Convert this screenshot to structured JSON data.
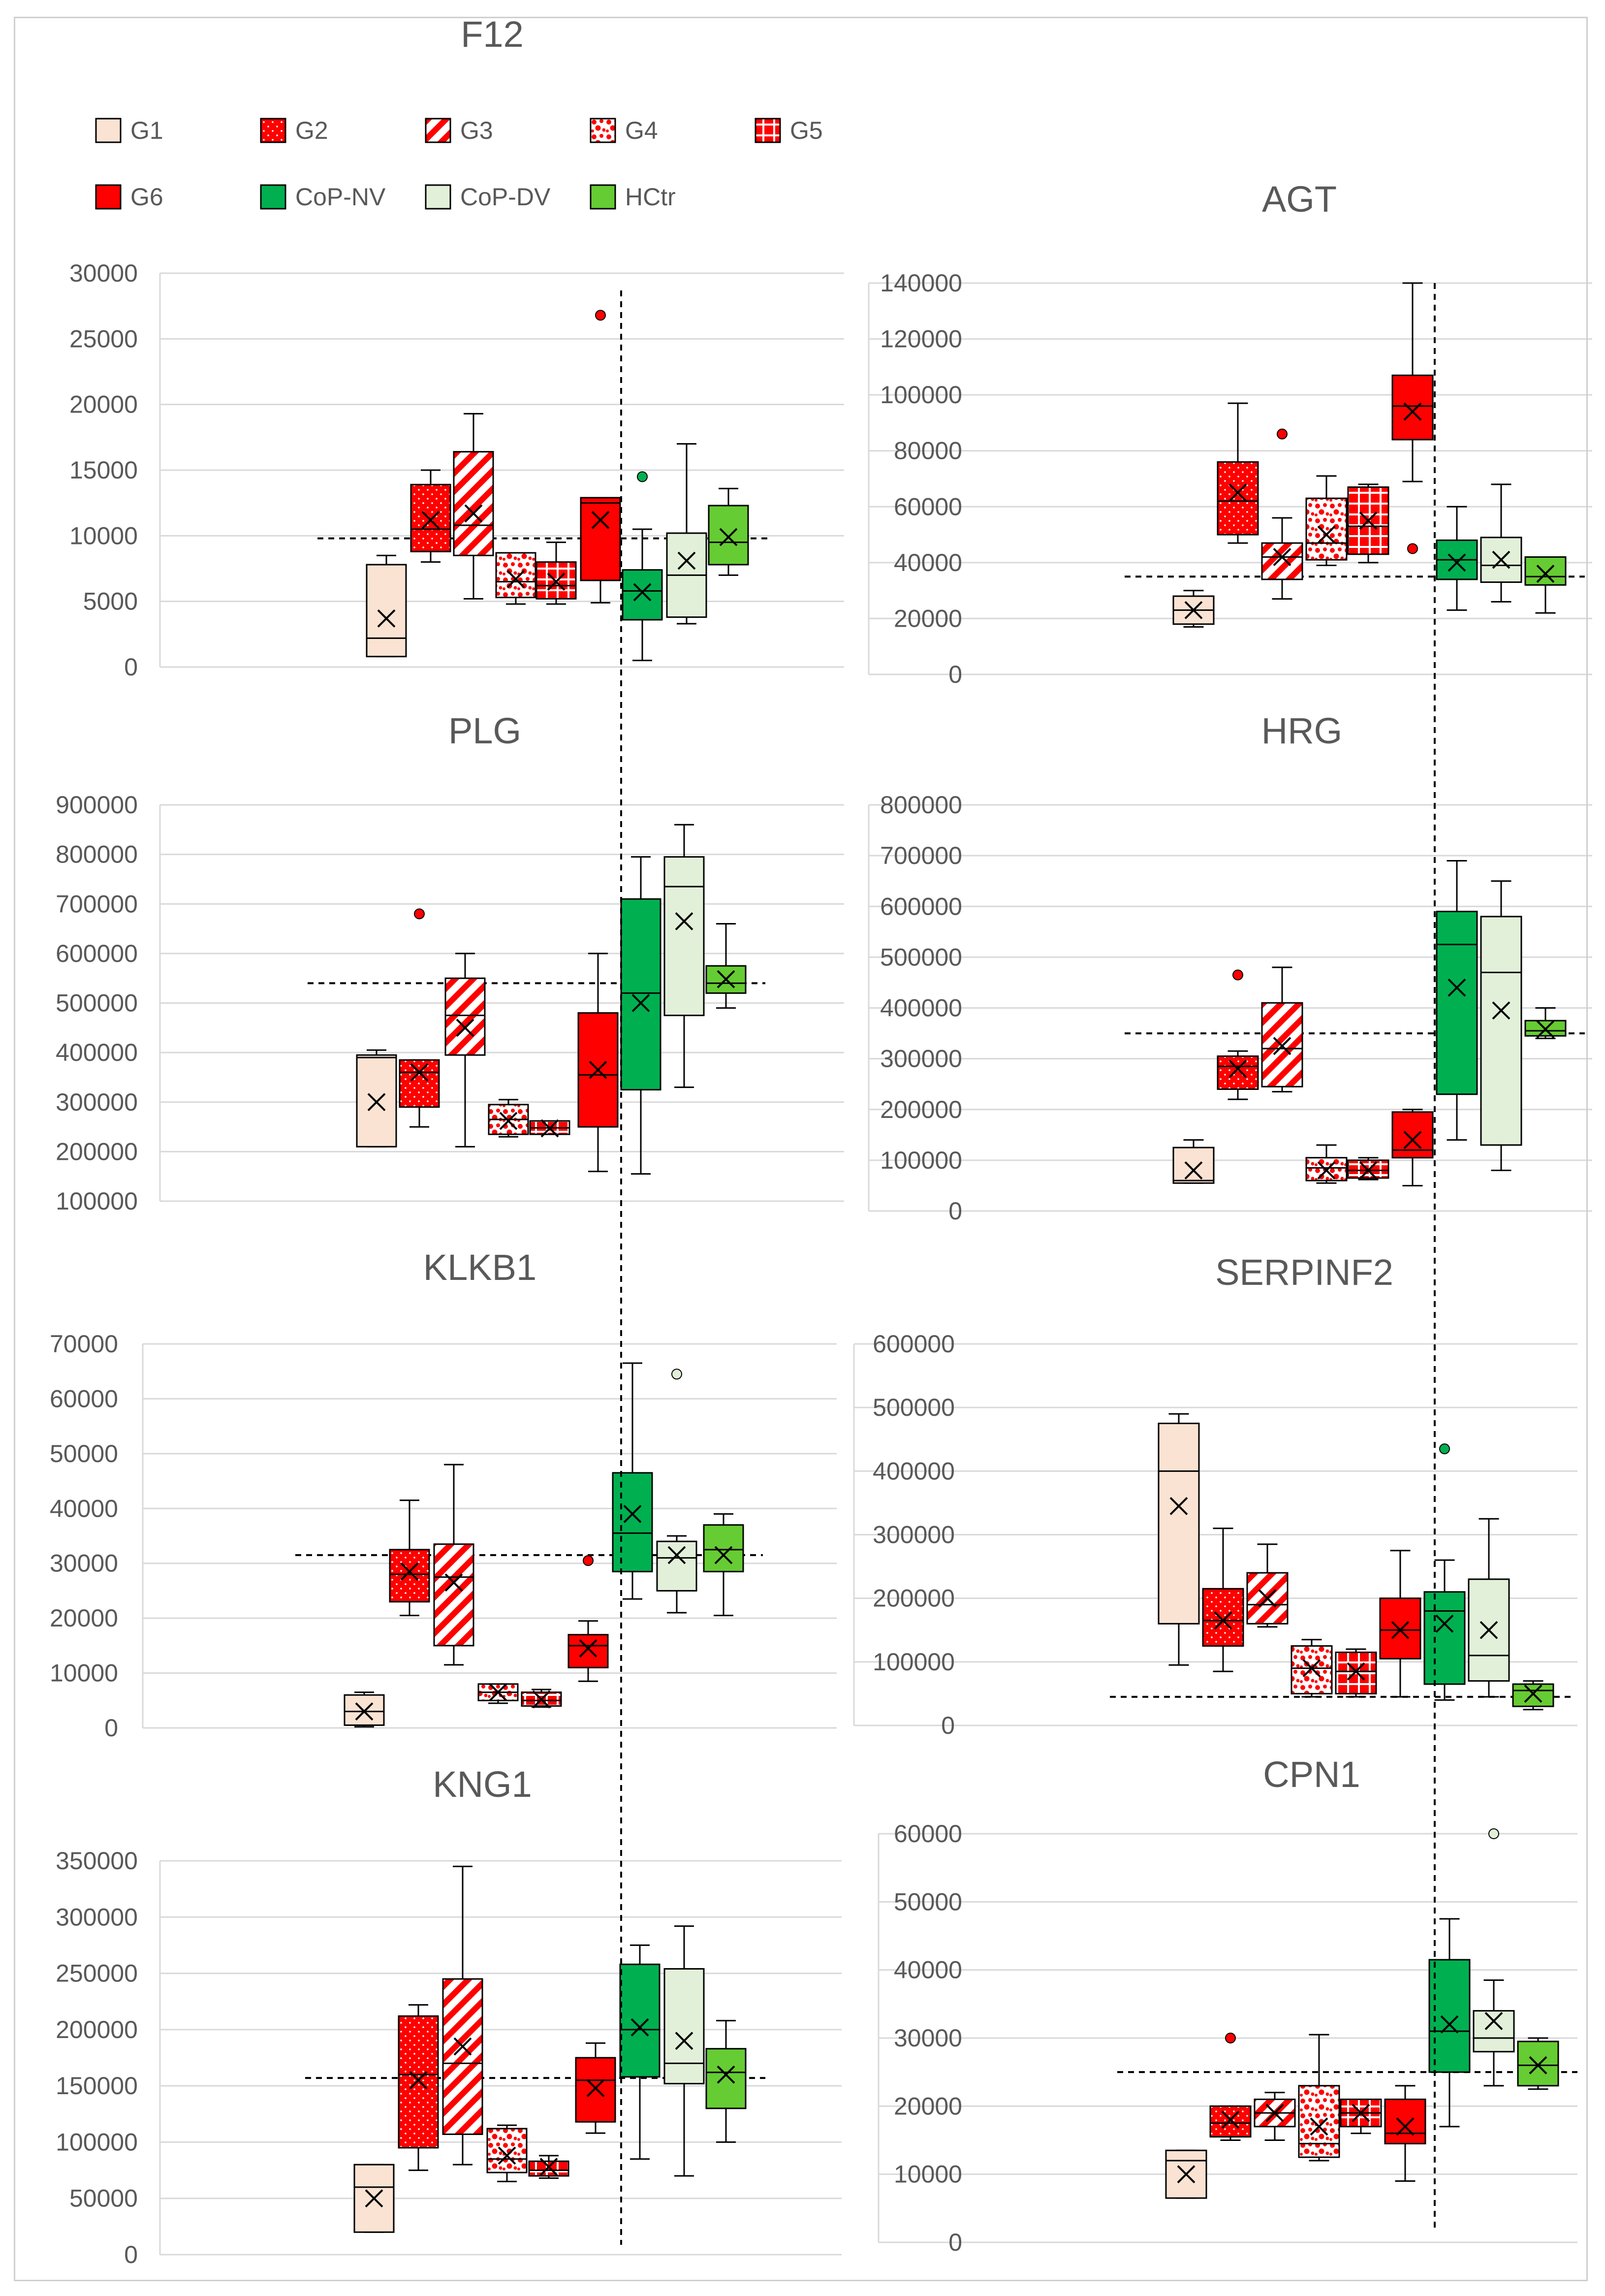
{
  "legend": {
    "entries": [
      {
        "name": "G1",
        "fill": "#fbe3d3",
        "pattern": "solid"
      },
      {
        "name": "G2",
        "fill": "#ff0000",
        "pattern": "dots"
      },
      {
        "name": "G3",
        "fill": "#ff0000",
        "pattern": "stripes"
      },
      {
        "name": "G4",
        "fill": "#ff0000",
        "pattern": "spots"
      },
      {
        "name": "G5",
        "fill": "#ff0000",
        "pattern": "grid"
      },
      {
        "name": "G6",
        "fill": "#ff0000",
        "pattern": "solid"
      },
      {
        "name": "CoP-NV",
        "fill": "#00b050",
        "pattern": "solid"
      },
      {
        "name": "CoP-DV",
        "fill": "#e2f0d9",
        "pattern": "solid"
      },
      {
        "name": "HCtr",
        "fill": "#66cc33",
        "pattern": "solid"
      }
    ]
  },
  "colors": {
    "grid": "#d9d9d9",
    "axis_text": "#595959",
    "title_text": "#595959",
    "box_stroke": "#000000",
    "G1": "#fbe3d3",
    "red": "#ff0000",
    "CoP-NV": "#00b050",
    "CoP-DV": "#e2f0d9",
    "HCtr": "#66cc33"
  },
  "chart_data": [
    {
      "type": "box",
      "title": "F12",
      "ylim": [
        0,
        30000
      ],
      "yticks": [
        "30000",
        "25000",
        "20000",
        "15000",
        "10000",
        "5000",
        "0"
      ],
      "reference_line": 9800,
      "groups": [
        {
          "name": "G1",
          "min": 800,
          "q1": 800,
          "median": 2200,
          "q3": 7800,
          "max": 8500,
          "mean": 3700,
          "outliers": []
        },
        {
          "name": "G2",
          "min": 8000,
          "q1": 8800,
          "median": 10500,
          "q3": 13900,
          "max": 15000,
          "mean": 11200,
          "outliers": []
        },
        {
          "name": "G3",
          "min": 5200,
          "q1": 8500,
          "median": 10800,
          "q3": 16400,
          "max": 19300,
          "mean": 11700,
          "outliers": []
        },
        {
          "name": "G4",
          "min": 4800,
          "q1": 5300,
          "median": 6500,
          "q3": 8700,
          "max": 8700,
          "mean": 6700,
          "outliers": []
        },
        {
          "name": "G5",
          "min": 4800,
          "q1": 5200,
          "median": 6200,
          "q3": 8000,
          "max": 9500,
          "mean": 6500,
          "outliers": []
        },
        {
          "name": "G6",
          "min": 4900,
          "q1": 6600,
          "median": 12500,
          "q3": 12900,
          "max": 12900,
          "mean": 11200,
          "outliers": [
            26800
          ]
        },
        {
          "name": "CoP-NV",
          "min": 500,
          "q1": 3600,
          "median": 5800,
          "q3": 7400,
          "max": 10500,
          "mean": 5700,
          "outliers": [
            14500
          ]
        },
        {
          "name": "CoP-DV",
          "min": 3300,
          "q1": 3800,
          "median": 7000,
          "q3": 10200,
          "max": 17000,
          "mean": 8100,
          "outliers": []
        },
        {
          "name": "HCtr",
          "min": 7000,
          "q1": 7800,
          "median": 9500,
          "q3": 12300,
          "max": 13600,
          "mean": 9900,
          "outliers": []
        }
      ]
    },
    {
      "type": "box",
      "title": "AGT",
      "ylim": [
        0,
        140000
      ],
      "yticks": [
        "140000",
        "120000",
        "100000",
        "80000",
        "60000",
        "40000",
        "20000",
        "0"
      ],
      "reference_line": 35000,
      "groups": [
        {
          "name": "G1",
          "min": 17000,
          "q1": 18000,
          "median": 23000,
          "q3": 28000,
          "max": 30000,
          "mean": 23000,
          "outliers": []
        },
        {
          "name": "G2",
          "min": 47000,
          "q1": 50000,
          "median": 62000,
          "q3": 76000,
          "max": 97000,
          "mean": 65000,
          "outliers": []
        },
        {
          "name": "G3",
          "min": 27000,
          "q1": 34000,
          "median": 42000,
          "q3": 47000,
          "max": 56000,
          "mean": 42000,
          "outliers": [
            86000
          ]
        },
        {
          "name": "G4",
          "min": 39000,
          "q1": 41000,
          "median": 47000,
          "q3": 63000,
          "max": 71000,
          "mean": 50000,
          "outliers": []
        },
        {
          "name": "G5",
          "min": 40000,
          "q1": 43000,
          "median": 53000,
          "q3": 67000,
          "max": 68000,
          "mean": 55000,
          "outliers": []
        },
        {
          "name": "G6",
          "min": 69000,
          "q1": 84000,
          "median": 96000,
          "q3": 107000,
          "max": 140000,
          "mean": 94000,
          "outliers": [
            45000
          ]
        },
        {
          "name": "CoP-NV",
          "min": 23000,
          "q1": 34000,
          "median": 41000,
          "q3": 48000,
          "max": 60000,
          "mean": 40000,
          "outliers": []
        },
        {
          "name": "CoP-DV",
          "min": 26000,
          "q1": 33000,
          "median": 39000,
          "q3": 49000,
          "max": 68000,
          "mean": 41000,
          "outliers": []
        },
        {
          "name": "HCtr",
          "min": 22000,
          "q1": 32000,
          "median": 35000,
          "q3": 42000,
          "max": 42000,
          "mean": 36000,
          "outliers": []
        }
      ]
    },
    {
      "type": "box",
      "title": "PLG",
      "ylim": [
        100000,
        900000
      ],
      "yticks": [
        "900000",
        "800000",
        "700000",
        "600000",
        "500000",
        "400000",
        "300000",
        "200000",
        "100000"
      ],
      "reference_line": 540000,
      "groups": [
        {
          "name": "G1",
          "min": 210000,
          "q1": 210000,
          "median": 390000,
          "q3": 395000,
          "max": 405000,
          "mean": 300000,
          "outliers": []
        },
        {
          "name": "G2",
          "min": 250000,
          "q1": 290000,
          "median": 360000,
          "q3": 385000,
          "max": 385000,
          "mean": 360000,
          "outliers": [
            680000
          ]
        },
        {
          "name": "G3",
          "min": 210000,
          "q1": 395000,
          "median": 475000,
          "q3": 550000,
          "max": 600000,
          "mean": 450000,
          "outliers": []
        },
        {
          "name": "G4",
          "min": 230000,
          "q1": 235000,
          "median": 265000,
          "q3": 295000,
          "max": 305000,
          "mean": 262000,
          "outliers": []
        },
        {
          "name": "G5",
          "min": 235000,
          "q1": 235000,
          "median": 248000,
          "q3": 262000,
          "max": 262000,
          "mean": 247000,
          "outliers": []
        },
        {
          "name": "G6",
          "min": 160000,
          "q1": 250000,
          "median": 355000,
          "q3": 480000,
          "max": 600000,
          "mean": 365000,
          "outliers": []
        },
        {
          "name": "CoP-NV",
          "min": 155000,
          "q1": 325000,
          "median": 520000,
          "q3": 710000,
          "max": 795000,
          "mean": 500000,
          "outliers": []
        },
        {
          "name": "CoP-DV",
          "min": 330000,
          "q1": 475000,
          "median": 735000,
          "q3": 795000,
          "max": 860000,
          "mean": 665000,
          "outliers": []
        },
        {
          "name": "HCtr",
          "min": 490000,
          "q1": 520000,
          "median": 540000,
          "q3": 575000,
          "max": 660000,
          "mean": 548000,
          "outliers": []
        }
      ]
    },
    {
      "type": "box",
      "title": "HRG",
      "ylim": [
        0,
        800000
      ],
      "yticks": [
        "800000",
        "700000",
        "600000",
        "500000",
        "400000",
        "300000",
        "200000",
        "100000",
        "0"
      ],
      "reference_line": 350000,
      "groups": [
        {
          "name": "G1",
          "min": 55000,
          "q1": 55000,
          "median": 60000,
          "q3": 125000,
          "max": 140000,
          "mean": 80000,
          "outliers": []
        },
        {
          "name": "G2",
          "min": 220000,
          "q1": 240000,
          "median": 285000,
          "q3": 305000,
          "max": 315000,
          "mean": 280000,
          "outliers": [
            465000
          ]
        },
        {
          "name": "G3",
          "min": 235000,
          "q1": 245000,
          "median": 320000,
          "q3": 410000,
          "max": 480000,
          "mean": 325000,
          "outliers": []
        },
        {
          "name": "G4",
          "min": 55000,
          "q1": 60000,
          "median": 85000,
          "q3": 105000,
          "max": 130000,
          "mean": 80000,
          "outliers": []
        },
        {
          "name": "G5",
          "min": 62000,
          "q1": 65000,
          "median": 80000,
          "q3": 100000,
          "max": 105000,
          "mean": 80000,
          "outliers": []
        },
        {
          "name": "G6",
          "min": 50000,
          "q1": 105000,
          "median": 120000,
          "q3": 195000,
          "max": 200000,
          "mean": 140000,
          "outliers": []
        },
        {
          "name": "CoP-NV",
          "min": 140000,
          "q1": 230000,
          "median": 525000,
          "q3": 590000,
          "max": 690000,
          "mean": 440000,
          "outliers": []
        },
        {
          "name": "CoP-DV",
          "min": 80000,
          "q1": 130000,
          "median": 470000,
          "q3": 580000,
          "max": 650000,
          "mean": 395000,
          "outliers": []
        },
        {
          "name": "HCtr",
          "min": 340000,
          "q1": 345000,
          "median": 355000,
          "q3": 375000,
          "max": 400000,
          "mean": 358000,
          "outliers": []
        }
      ]
    },
    {
      "type": "box",
      "title": "KLKB1",
      "ylim": [
        0,
        70000
      ],
      "yticks": [
        "70000",
        "60000",
        "50000",
        "40000",
        "30000",
        "20000",
        "10000",
        "0"
      ],
      "reference_line": 31500,
      "groups": [
        {
          "name": "G1",
          "min": 200,
          "q1": 500,
          "median": 3000,
          "q3": 6000,
          "max": 6500,
          "mean": 3000,
          "outliers": []
        },
        {
          "name": "G2",
          "min": 20500,
          "q1": 23000,
          "median": 28000,
          "q3": 32500,
          "max": 41500,
          "mean": 28500,
          "outliers": []
        },
        {
          "name": "G3",
          "min": 11500,
          "q1": 15000,
          "median": 27500,
          "q3": 33500,
          "max": 48000,
          "mean": 26500,
          "outliers": []
        },
        {
          "name": "G4",
          "min": 4500,
          "q1": 5000,
          "median": 6500,
          "q3": 8000,
          "max": 8000,
          "mean": 6500,
          "outliers": []
        },
        {
          "name": "G5",
          "min": 3800,
          "q1": 4000,
          "median": 5000,
          "q3": 6500,
          "max": 7000,
          "mean": 5200,
          "outliers": []
        },
        {
          "name": "G6",
          "min": 8500,
          "q1": 11000,
          "median": 15000,
          "q3": 17000,
          "max": 19500,
          "mean": 14500,
          "outliers": [
            30500
          ]
        },
        {
          "name": "CoP-NV",
          "min": 23500,
          "q1": 28500,
          "median": 35500,
          "q3": 46500,
          "max": 66500,
          "mean": 39000,
          "outliers": []
        },
        {
          "name": "CoP-DV",
          "min": 21000,
          "q1": 25000,
          "median": 31000,
          "q3": 34000,
          "max": 35000,
          "mean": 31500,
          "outliers": [
            64500
          ]
        },
        {
          "name": "HCtr",
          "min": 20500,
          "q1": 28500,
          "median": 32500,
          "q3": 37000,
          "max": 39000,
          "mean": 31500,
          "outliers": []
        }
      ]
    },
    {
      "type": "box",
      "title": "SERPINF2",
      "ylim": [
        0,
        600000
      ],
      "yticks": [
        "600000",
        "500000",
        "400000",
        "300000",
        "200000",
        "100000",
        "0"
      ],
      "reference_line": 45000,
      "groups": [
        {
          "name": "G1",
          "min": 95000,
          "q1": 160000,
          "median": 400000,
          "q3": 475000,
          "max": 490000,
          "mean": 345000,
          "outliers": []
        },
        {
          "name": "G2",
          "min": 85000,
          "q1": 125000,
          "median": 165000,
          "q3": 215000,
          "max": 310000,
          "mean": 165000,
          "outliers": []
        },
        {
          "name": "G3",
          "min": 155000,
          "q1": 160000,
          "median": 190000,
          "q3": 240000,
          "max": 285000,
          "mean": 200000,
          "outliers": []
        },
        {
          "name": "G4",
          "min": 45000,
          "q1": 50000,
          "median": 90000,
          "q3": 125000,
          "max": 135000,
          "mean": 90000,
          "outliers": []
        },
        {
          "name": "G5",
          "min": 45000,
          "q1": 50000,
          "median": 85000,
          "q3": 115000,
          "max": 120000,
          "mean": 85000,
          "outliers": []
        },
        {
          "name": "G6",
          "min": 45000,
          "q1": 105000,
          "median": 150000,
          "q3": 200000,
          "max": 275000,
          "mean": 150000,
          "outliers": []
        },
        {
          "name": "CoP-NV",
          "min": 40000,
          "q1": 65000,
          "median": 180000,
          "q3": 210000,
          "max": 260000,
          "mean": 160000,
          "outliers": [
            435000
          ]
        },
        {
          "name": "CoP-DV",
          "min": 45000,
          "q1": 70000,
          "median": 110000,
          "q3": 230000,
          "max": 325000,
          "mean": 150000,
          "outliers": []
        },
        {
          "name": "HCtr",
          "min": 25000,
          "q1": 30000,
          "median": 55000,
          "q3": 65000,
          "max": 70000,
          "mean": 50000,
          "outliers": []
        }
      ]
    },
    {
      "type": "box",
      "title": "KNG1",
      "ylim": [
        0,
        350000
      ],
      "yticks": [
        "350000",
        "300000",
        "250000",
        "200000",
        "150000",
        "100000",
        "50000",
        "0"
      ],
      "reference_line": 157000,
      "groups": [
        {
          "name": "G1",
          "min": 20000,
          "q1": 20000,
          "median": 60000,
          "q3": 80000,
          "max": 80000,
          "mean": 50000,
          "outliers": []
        },
        {
          "name": "G2",
          "min": 75000,
          "q1": 95000,
          "median": 160000,
          "q3": 212000,
          "max": 222000,
          "mean": 155000,
          "outliers": []
        },
        {
          "name": "G3",
          "min": 80000,
          "q1": 107000,
          "median": 170000,
          "q3": 245000,
          "max": 345000,
          "mean": 185000,
          "outliers": []
        },
        {
          "name": "G4",
          "min": 65000,
          "q1": 73000,
          "median": 85000,
          "q3": 112000,
          "max": 115000,
          "mean": 88000,
          "outliers": []
        },
        {
          "name": "G5",
          "min": 68000,
          "q1": 70000,
          "median": 75000,
          "q3": 83000,
          "max": 88000,
          "mean": 78000,
          "outliers": []
        },
        {
          "name": "G6",
          "min": 108000,
          "q1": 118000,
          "median": 155000,
          "q3": 175000,
          "max": 188000,
          "mean": 148000,
          "outliers": []
        },
        {
          "name": "CoP-NV",
          "min": 85000,
          "q1": 158000,
          "median": 200000,
          "q3": 258000,
          "max": 275000,
          "mean": 202000,
          "outliers": []
        },
        {
          "name": "CoP-DV",
          "min": 70000,
          "q1": 152000,
          "median": 170000,
          "q3": 254000,
          "max": 292000,
          "mean": 190000,
          "outliers": []
        },
        {
          "name": "HCtr",
          "min": 100000,
          "q1": 130000,
          "median": 162000,
          "q3": 183000,
          "max": 208000,
          "mean": 160000,
          "outliers": []
        }
      ]
    },
    {
      "type": "box",
      "title": "CPN1",
      "ylim": [
        0,
        60000
      ],
      "yticks": [
        "60000",
        "50000",
        "40000",
        "30000",
        "20000",
        "10000",
        "0"
      ],
      "reference_line": 25000,
      "groups": [
        {
          "name": "G1",
          "min": 6500,
          "q1": 6500,
          "median": 12000,
          "q3": 13500,
          "max": 13500,
          "mean": 10000,
          "outliers": []
        },
        {
          "name": "G2",
          "min": 15000,
          "q1": 15500,
          "median": 17500,
          "q3": 20000,
          "max": 20000,
          "mean": 18000,
          "outliers": [
            30000
          ]
        },
        {
          "name": "G3",
          "min": 15000,
          "q1": 17000,
          "median": 19000,
          "q3": 21000,
          "max": 22000,
          "mean": 19000,
          "outliers": []
        },
        {
          "name": "G4",
          "min": 12000,
          "q1": 12500,
          "median": 14500,
          "q3": 23000,
          "max": 30500,
          "mean": 17000,
          "outliers": []
        },
        {
          "name": "G5",
          "min": 16000,
          "q1": 17000,
          "median": 19000,
          "q3": 21000,
          "max": 21000,
          "mean": 19000,
          "outliers": []
        },
        {
          "name": "G6",
          "min": 9000,
          "q1": 14500,
          "median": 16000,
          "q3": 21000,
          "max": 23000,
          "mean": 17000,
          "outliers": []
        },
        {
          "name": "CoP-NV",
          "min": 17000,
          "q1": 25000,
          "median": 31000,
          "q3": 41500,
          "max": 47500,
          "mean": 32000,
          "outliers": []
        },
        {
          "name": "CoP-DV",
          "min": 23000,
          "q1": 28000,
          "median": 30000,
          "q3": 34000,
          "max": 38500,
          "mean": 32500,
          "outliers": [
            60000
          ]
        },
        {
          "name": "HCtr",
          "min": 22500,
          "q1": 23000,
          "median": 26000,
          "q3": 29500,
          "max": 30000,
          "mean": 26000,
          "outliers": []
        }
      ]
    }
  ]
}
